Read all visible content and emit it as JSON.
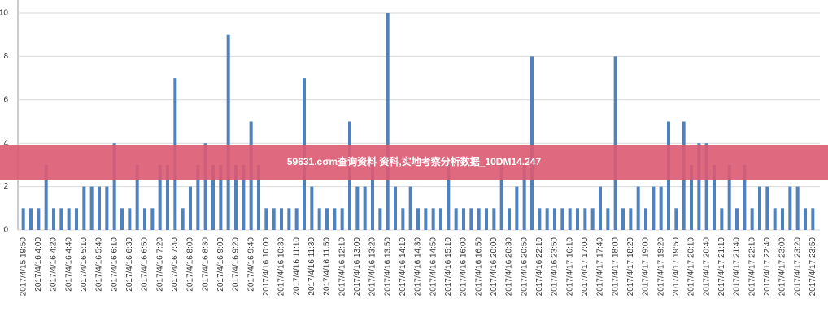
{
  "chart_data": {
    "type": "bar",
    "categories": [
      "2017/4/15 19:50",
      null,
      "2017/4/16 4:00",
      null,
      "2017/4/16 4:20",
      null,
      "2017/4/16 4:40",
      null,
      "2017/4/16 5:10",
      null,
      "2017/4/16 5:40",
      null,
      "2017/4/16 6:10",
      null,
      "2017/4/16 6:30",
      null,
      "2017/4/16 6:50",
      null,
      "2017/4/16 7:20",
      null,
      "2017/4/16 7:40",
      null,
      "2017/4/16 8:00",
      null,
      "2017/4/16 8:30",
      null,
      "2017/4/16 9:00",
      null,
      "2017/4/16 9:20",
      null,
      "2017/4/16 9:40",
      null,
      "2017/4/16 10:00",
      null,
      "2017/4/16 10:30",
      null,
      "2017/4/16 11:10",
      null,
      "2017/4/16 11:30",
      null,
      "2017/4/16 11:50",
      null,
      "2017/4/16 12:10",
      null,
      "2017/4/16 13:00",
      null,
      "2017/4/16 13:20",
      null,
      "2017/4/16 13:50",
      null,
      "2017/4/16 14:10",
      null,
      "2017/4/16 14:30",
      null,
      "2017/4/16 14:50",
      null,
      "2017/4/16 15:10",
      null,
      "2017/4/16 16:00",
      null,
      "2017/4/16 16:50",
      null,
      "2017/4/16 20:00",
      null,
      "2017/4/16 20:30",
      null,
      "2017/4/16 20:50",
      null,
      "2017/4/16 22:10",
      null,
      "2017/4/16 23:50",
      null,
      "2017/4/17 16:10",
      null,
      "2017/4/17 17:00",
      null,
      "2017/4/17 17:40",
      null,
      "2017/4/17 18:00",
      null,
      "2017/4/17 18:20",
      null,
      "2017/4/17 19:00",
      null,
      "2017/4/17 19:20",
      null,
      "2017/4/17 19:50",
      null,
      "2017/4/17 20:10",
      null,
      "2017/4/17 20:40",
      null,
      "2017/4/17 21:10",
      null,
      "2017/4/17 21:40",
      null,
      "2017/4/17 22:10",
      null,
      "2017/4/17 22:40",
      null,
      "2017/4/17 23:00",
      null,
      "2017/4/17 23:20",
      null,
      "2017/4/17 23:50"
    ],
    "values": [
      1,
      1,
      1,
      3,
      1,
      1,
      1,
      1,
      2,
      2,
      2,
      2,
      4,
      1,
      1,
      3,
      1,
      1,
      3,
      3,
      7,
      1,
      2,
      3,
      4,
      3,
      3,
      9,
      3,
      3,
      5,
      3,
      1,
      1,
      1,
      1,
      1,
      7,
      2,
      1,
      1,
      1,
      1,
      5,
      2,
      2,
      3,
      1,
      10,
      2,
      1,
      2,
      1,
      1,
      1,
      1,
      3,
      1,
      1,
      1,
      1,
      1,
      1,
      3,
      1,
      2,
      3,
      8,
      1,
      1,
      1,
      1,
      1,
      1,
      1,
      1,
      2,
      1,
      8,
      1,
      1,
      2,
      1,
      2,
      2,
      5,
      1,
      5,
      3,
      4,
      4,
      3,
      1,
      3,
      1,
      3,
      1,
      2,
      2,
      1,
      1,
      2,
      2,
      1,
      1
    ],
    "color": "#4f81bd",
    "ylim": [
      0,
      10
    ],
    "yticks": [
      0,
      2,
      4,
      6,
      8,
      10
    ],
    "grid": true
  },
  "banner": "59631.cσm查询资料 资科,实地考察分析数据_10DM14.247"
}
